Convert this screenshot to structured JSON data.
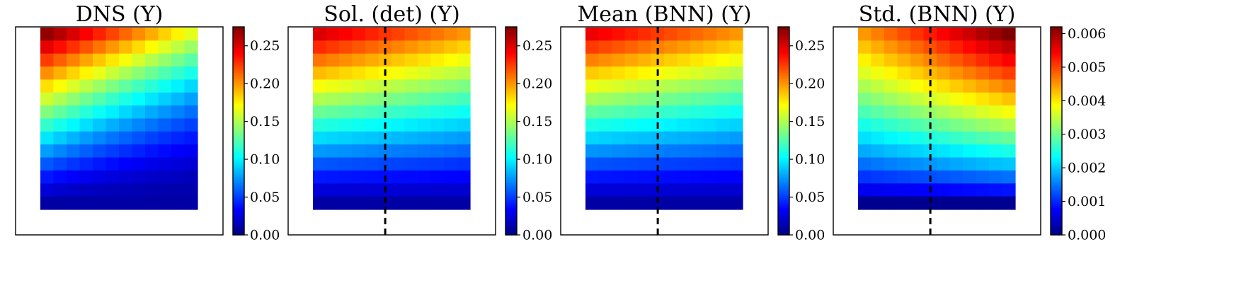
{
  "chart_data": [
    {
      "type": "heatmap",
      "title": "DNS (Y)",
      "grid": {
        "rows": 14,
        "cols": 12
      },
      "colorbar": {
        "range": [
          0,
          0.275
        ],
        "ticks": [
          "0.00",
          "0.05",
          "0.10",
          "0.15",
          "0.20",
          "0.25"
        ],
        "tick_values": [
          0,
          0.05,
          0.1,
          0.15,
          0.2,
          0.25
        ]
      },
      "dashed_divider": false,
      "field": {
        "top_left": 0.27,
        "top_right": 0.165,
        "bottom_left": 0.01,
        "bottom_right": 0.01,
        "profile": "dns"
      }
    },
    {
      "type": "heatmap",
      "title": "Sol. (det) (Y)",
      "grid": {
        "rows": 14,
        "cols": 12
      },
      "colorbar": {
        "range": [
          0,
          0.275
        ],
        "ticks": [
          "0.00",
          "0.05",
          "0.10",
          "0.15",
          "0.20",
          "0.25"
        ],
        "tick_values": [
          0,
          0.05,
          0.1,
          0.15,
          0.2,
          0.25
        ]
      },
      "dashed_divider": true,
      "field": {
        "top_left": 0.25,
        "top_right": 0.2,
        "bottom_left": 0.01,
        "bottom_right": 0.01,
        "profile": "smooth"
      }
    },
    {
      "type": "heatmap",
      "title": "Mean (BNN) (Y)",
      "grid": {
        "rows": 14,
        "cols": 12
      },
      "colorbar": {
        "range": [
          0,
          0.275
        ],
        "ticks": [
          "0.00",
          "0.05",
          "0.10",
          "0.15",
          "0.20",
          "0.25"
        ],
        "tick_values": [
          0,
          0.05,
          0.1,
          0.15,
          0.2,
          0.25
        ]
      },
      "dashed_divider": true,
      "field": {
        "top_left": 0.245,
        "top_right": 0.2,
        "bottom_left": 0.01,
        "bottom_right": 0.01,
        "profile": "smooth"
      }
    },
    {
      "type": "heatmap",
      "title": "Std. (BNN) (Y)",
      "grid": {
        "rows": 14,
        "cols": 12
      },
      "colorbar": {
        "range": [
          0,
          0.0062
        ],
        "ticks": [
          "0.000",
          "0.001",
          "0.002",
          "0.003",
          "0.004",
          "0.005",
          "0.006"
        ],
        "tick_values": [
          0,
          0.001,
          0.002,
          0.003,
          0.004,
          0.005,
          0.006
        ]
      },
      "dashed_divider": true,
      "field": {
        "top_left": 0.0045,
        "top_right": 0.0062,
        "bottom_left": 0.0001,
        "bottom_right": 0.0001,
        "profile": "std"
      }
    }
  ]
}
